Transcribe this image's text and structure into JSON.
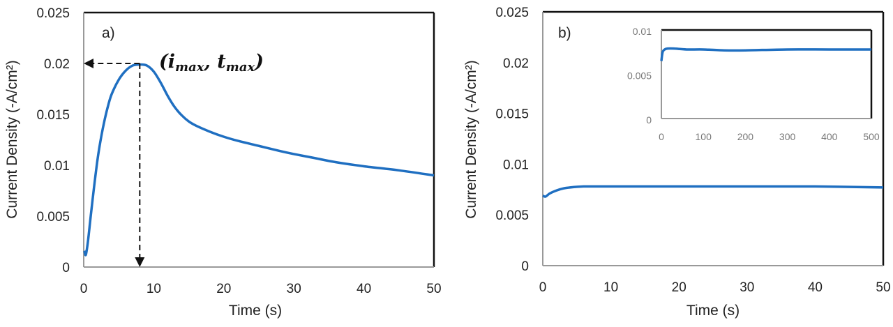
{
  "chart_data": [
    {
      "type": "line",
      "panel_label": "a)",
      "xlabel": "Time (s)",
      "ylabel": "Current Density (-A/cm²)",
      "xlim": [
        0,
        50
      ],
      "ylim": [
        0,
        0.025
      ],
      "xticks": [
        "0",
        "10",
        "20",
        "30",
        "40",
        "50"
      ],
      "yticks": [
        "0",
        "0.005",
        "0.01",
        "0.015",
        "0.02",
        "0.025"
      ],
      "annotation": {
        "text": "(imax, tmax)",
        "point": [
          8,
          0.02
        ]
      },
      "color": "#1f6fc1",
      "series": [
        {
          "x": [
            0.1,
            0.3,
            0.6,
            1,
            1.5,
            2,
            2.5,
            3,
            3.5,
            4,
            5,
            6,
            7,
            8,
            9,
            10,
            11,
            12,
            13,
            14,
            15,
            16,
            18,
            20,
            22,
            25,
            28,
            30,
            33,
            36,
            40,
            45,
            50
          ],
          "y": [
            0.0016,
            0.0012,
            0.0025,
            0.005,
            0.008,
            0.0107,
            0.0128,
            0.0145,
            0.0159,
            0.017,
            0.0184,
            0.0193,
            0.0198,
            0.0199,
            0.0198,
            0.0192,
            0.0181,
            0.0168,
            0.0157,
            0.0149,
            0.0143,
            0.0139,
            0.0133,
            0.0128,
            0.0124,
            0.0119,
            0.0114,
            0.0111,
            0.0107,
            0.0103,
            0.0099,
            0.0095,
            0.009
          ]
        }
      ]
    },
    {
      "type": "line",
      "panel_label": "b)",
      "xlabel": "Time (s)",
      "ylabel": "Current Density (-A/cm²)",
      "xlim": [
        0,
        50
      ],
      "ylim": [
        0,
        0.025
      ],
      "xticks": [
        "0",
        "10",
        "20",
        "30",
        "40",
        "50"
      ],
      "yticks": [
        "0",
        "0.005",
        "0.01",
        "0.015",
        "0.02",
        "0.025"
      ],
      "color": "#1f6fc1",
      "series": [
        {
          "x": [
            0,
            0.4,
            1,
            2,
            3,
            4,
            6,
            8,
            10,
            20,
            30,
            40,
            50
          ],
          "y": [
            0.0069,
            0.0068,
            0.0071,
            0.0074,
            0.0076,
            0.0077,
            0.0078,
            0.0078,
            0.0078,
            0.0078,
            0.0078,
            0.0078,
            0.0077
          ]
        }
      ],
      "inset": {
        "xlim": [
          0,
          500
        ],
        "ylim": [
          0,
          0.01
        ],
        "xticks": [
          "0",
          "100",
          "200",
          "300",
          "400",
          "500"
        ],
        "yticks": [
          "0",
          "0.005",
          "0.01"
        ],
        "series": [
          {
            "x": [
              0,
              3,
              8,
              15,
              30,
              60,
              100,
              150,
              200,
              300,
              400,
              500
            ],
            "y": [
              0.0065,
              0.0075,
              0.0078,
              0.0079,
              0.0079,
              0.0078,
              0.0078,
              0.0077,
              0.0077,
              0.0078,
              0.0078,
              0.0078
            ]
          }
        ]
      }
    }
  ]
}
